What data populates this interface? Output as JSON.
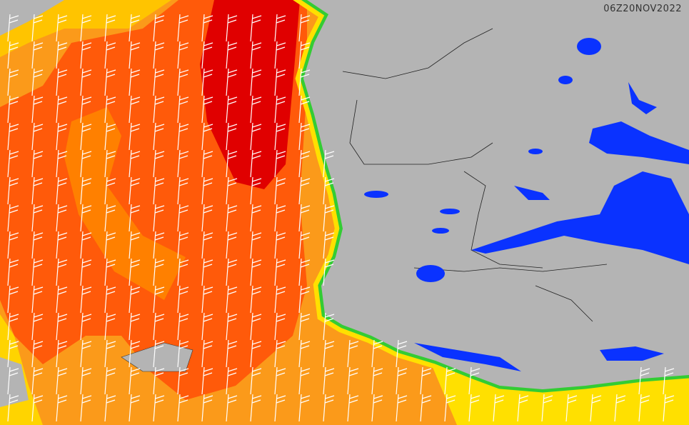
{
  "map": {
    "timestamp": "06Z20NOV2022"
  }
}
